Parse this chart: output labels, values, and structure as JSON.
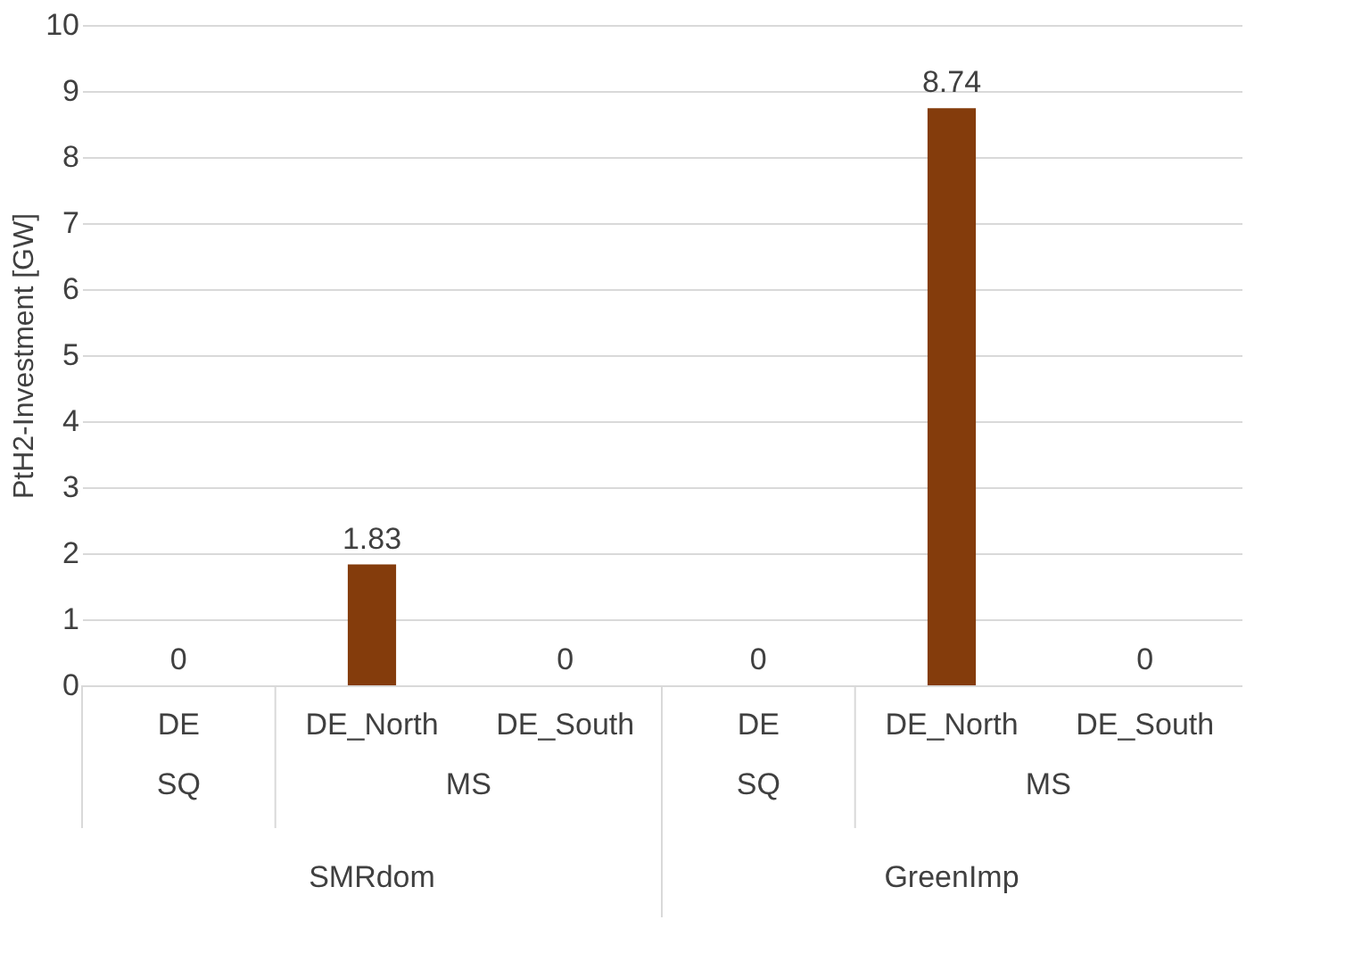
{
  "chart_data": {
    "type": "bar",
    "ylabel": "PtH2-Investment [GW]",
    "categories": [
      "DE",
      "DE_North",
      "DE_South",
      "DE",
      "DE_North",
      "DE_South"
    ],
    "values": [
      0,
      1.83,
      0,
      0,
      8.74,
      0
    ],
    "color": "#843c0c",
    "ylim": [
      0,
      10
    ],
    "yticks": [
      0,
      1,
      2,
      3,
      4,
      5,
      6,
      7,
      8,
      9,
      10
    ],
    "grid": "y",
    "data_labels": true,
    "annotations": [
      "SQ",
      "MS",
      "SQ",
      "MS",
      "SMRdom",
      "GreenImp"
    ]
  }
}
